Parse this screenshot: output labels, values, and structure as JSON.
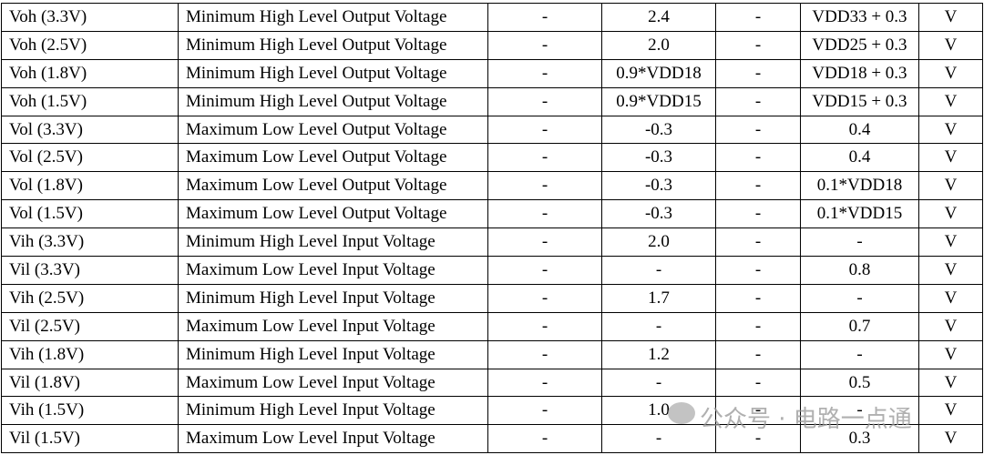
{
  "table": {
    "rows": [
      [
        "Voh (3.3V)",
        "Minimum High Level Output Voltage",
        "-",
        "2.4",
        "-",
        "VDD33 + 0.3",
        "V"
      ],
      [
        "Voh (2.5V)",
        "Minimum High Level Output Voltage",
        "-",
        "2.0",
        "-",
        "VDD25 + 0.3",
        "V"
      ],
      [
        "Voh (1.8V)",
        "Minimum High Level Output Voltage",
        "-",
        "0.9*VDD18",
        "-",
        "VDD18 + 0.3",
        "V"
      ],
      [
        "Voh (1.5V)",
        "Minimum High Level Output Voltage",
        "-",
        "0.9*VDD15",
        "-",
        "VDD15 + 0.3",
        "V"
      ],
      [
        "Vol (3.3V)",
        "Maximum Low Level Output Voltage",
        "-",
        "-0.3",
        "-",
        "0.4",
        "V"
      ],
      [
        "Vol (2.5V)",
        "Maximum Low Level Output Voltage",
        "-",
        "-0.3",
        "-",
        "0.4",
        "V"
      ],
      [
        "Vol (1.8V)",
        "Maximum Low Level Output Voltage",
        "-",
        "-0.3",
        "-",
        "0.1*VDD18",
        "V"
      ],
      [
        "Vol (1.5V)",
        "Maximum Low Level Output Voltage",
        "-",
        "-0.3",
        "-",
        "0.1*VDD15",
        "V"
      ],
      [
        "Vih (3.3V)",
        "Minimum High Level Input Voltage",
        "-",
        "2.0",
        "-",
        "-",
        "V"
      ],
      [
        "Vil (3.3V)",
        "Maximum Low Level Input Voltage",
        "-",
        "-",
        "-",
        "0.8",
        "V"
      ],
      [
        "Vih (2.5V)",
        "Minimum High Level Input Voltage",
        "-",
        "1.7",
        "-",
        "-",
        "V"
      ],
      [
        "Vil (2.5V)",
        "Maximum Low Level Input Voltage",
        "-",
        "-",
        "-",
        "0.7",
        "V"
      ],
      [
        "Vih (1.8V)",
        "Minimum High Level Input Voltage",
        "-",
        "1.2",
        "-",
        "-",
        "V"
      ],
      [
        "Vil (1.8V)",
        "Maximum Low Level Input Voltage",
        "-",
        "-",
        "-",
        "0.5",
        "V"
      ],
      [
        "Vih (1.5V)",
        "Minimum High Level Input Voltage",
        "-",
        "1.0",
        "-",
        "-",
        "V"
      ],
      [
        "Vil (1.5V)",
        "Maximum Low Level Input Voltage",
        "-",
        "-",
        "-",
        "0.3",
        "V"
      ]
    ],
    "watermark": "公众号 · 电路一点通"
  }
}
